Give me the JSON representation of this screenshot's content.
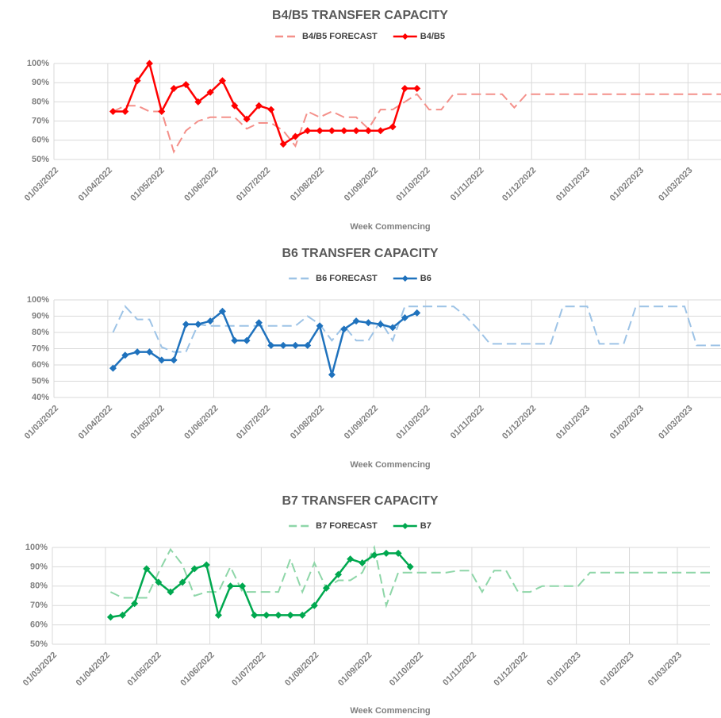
{
  "chart_data": [
    {
      "type": "line",
      "title": "B4/B5 TRANSFER CAPACITY",
      "x_label": "Week Commencing",
      "grid": true,
      "x": [
        "04/04/2022",
        "11/04/2022",
        "18/04/2022",
        "25/04/2022",
        "02/05/2022",
        "09/05/2022",
        "16/05/2022",
        "23/05/2022",
        "30/05/2022",
        "06/06/2022",
        "13/06/2022",
        "20/06/2022",
        "27/06/2022",
        "04/07/2022",
        "11/07/2022",
        "18/07/2022",
        "25/07/2022",
        "01/08/2022",
        "08/08/2022",
        "15/08/2022",
        "22/08/2022",
        "29/08/2022",
        "05/09/2022",
        "12/09/2022",
        "19/09/2022",
        "26/09/2022",
        "03/10/2022",
        "10/10/2022",
        "17/10/2022",
        "24/10/2022",
        "31/10/2022",
        "07/11/2022",
        "14/11/2022",
        "21/11/2022",
        "28/11/2022",
        "05/12/2022",
        "12/12/2022",
        "19/12/2022",
        "26/12/2022",
        "02/01/2023",
        "09/01/2023",
        "16/01/2023",
        "23/01/2023",
        "30/01/2023",
        "06/02/2023",
        "13/02/2023",
        "20/02/2023",
        "27/02/2023",
        "06/03/2023",
        "13/03/2023",
        "20/03/2023"
      ],
      "xlim": [
        "01/03/2022",
        "20/03/2023"
      ],
      "xticks": [
        "01/03/2022",
        "01/04/2022",
        "01/05/2022",
        "01/06/2022",
        "01/07/2022",
        "01/08/2022",
        "01/09/2022",
        "01/10/2022",
        "01/11/2022",
        "01/12/2022",
        "01/01/2023",
        "01/02/2023",
        "01/03/2023"
      ],
      "ylim": [
        50,
        100
      ],
      "yticks": [
        {
          "value": 50,
          "label": "50%"
        },
        {
          "value": 60,
          "label": "60%"
        },
        {
          "value": 70,
          "label": "70%"
        },
        {
          "value": 80,
          "label": "80%"
        },
        {
          "value": 90,
          "label": "90%"
        },
        {
          "value": 100,
          "label": "100%"
        }
      ],
      "series": [
        {
          "name": "B4/B5 FORECAST",
          "color": "#f4908a",
          "dashed": true,
          "values": [
            75,
            78,
            78,
            75,
            75,
            54,
            65,
            70,
            72,
            72,
            72,
            66,
            69,
            69,
            65,
            57,
            75,
            72,
            75,
            72,
            72,
            66,
            76,
            76,
            80,
            84,
            76,
            76,
            84,
            84,
            84,
            84,
            84,
            77,
            84,
            84,
            84,
            84,
            84,
            84,
            84,
            84,
            84,
            84,
            84,
            84,
            84,
            84,
            84,
            84,
            84
          ]
        },
        {
          "name": "B4/B5",
          "color": "#ff0000",
          "marker": "diamond",
          "values": [
            75,
            75,
            91,
            100,
            75,
            87,
            89,
            80,
            85,
            91,
            78,
            71,
            78,
            76,
            58,
            62,
            65,
            65,
            65,
            65,
            65,
            65,
            65,
            67,
            87,
            87,
            null,
            null,
            null,
            null,
            null,
            null,
            null,
            null,
            null,
            null,
            null,
            null,
            null,
            null,
            null,
            null,
            null,
            null,
            null,
            null,
            null,
            null,
            null,
            null,
            null
          ]
        }
      ]
    },
    {
      "type": "line",
      "title": "B6 TRANSFER CAPACITY",
      "x_label": "Week Commencing",
      "grid": true,
      "x": [
        "04/04/2022",
        "11/04/2022",
        "18/04/2022",
        "25/04/2022",
        "02/05/2022",
        "09/05/2022",
        "16/05/2022",
        "23/05/2022",
        "30/05/2022",
        "06/06/2022",
        "13/06/2022",
        "20/06/2022",
        "27/06/2022",
        "04/07/2022",
        "11/07/2022",
        "18/07/2022",
        "25/07/2022",
        "01/08/2022",
        "08/08/2022",
        "15/08/2022",
        "22/08/2022",
        "29/08/2022",
        "05/09/2022",
        "12/09/2022",
        "19/09/2022",
        "26/09/2022",
        "03/10/2022",
        "10/10/2022",
        "17/10/2022",
        "24/10/2022",
        "31/10/2022",
        "07/11/2022",
        "14/11/2022",
        "21/11/2022",
        "28/11/2022",
        "05/12/2022",
        "12/12/2022",
        "19/12/2022",
        "26/12/2022",
        "02/01/2023",
        "09/01/2023",
        "16/01/2023",
        "23/01/2023",
        "30/01/2023",
        "06/02/2023",
        "13/02/2023",
        "20/02/2023",
        "27/02/2023",
        "06/03/2023",
        "13/03/2023",
        "20/03/2023"
      ],
      "xlim": [
        "01/03/2022",
        "20/03/2023"
      ],
      "xticks": [
        "01/03/2022",
        "01/04/2022",
        "01/05/2022",
        "01/06/2022",
        "01/07/2022",
        "01/08/2022",
        "01/09/2022",
        "01/10/2022",
        "01/11/2022",
        "01/12/2022",
        "01/01/2023",
        "01/02/2023",
        "01/03/2023"
      ],
      "ylim": [
        40,
        100
      ],
      "yticks": [
        {
          "value": 40,
          "label": "40%"
        },
        {
          "value": 50,
          "label": "50%"
        },
        {
          "value": 60,
          "label": "60%"
        },
        {
          "value": 70,
          "label": "70%"
        },
        {
          "value": 80,
          "label": "80%"
        },
        {
          "value": 90,
          "label": "90%"
        },
        {
          "value": 100,
          "label": "100%"
        }
      ],
      "series": [
        {
          "name": "B6 FORECAST",
          "color": "#9dc3e6",
          "dashed": true,
          "values": [
            80,
            96,
            88,
            88,
            71,
            68,
            68,
            85,
            84,
            84,
            84,
            84,
            84,
            84,
            84,
            84,
            90,
            85,
            75,
            84,
            75,
            75,
            87,
            75,
            96,
            96,
            96,
            96,
            96,
            90,
            82,
            73,
            73,
            73,
            73,
            73,
            73,
            96,
            96,
            96,
            73,
            73,
            73,
            96,
            96,
            96,
            96,
            96,
            72,
            72,
            72
          ]
        },
        {
          "name": "B6",
          "color": "#1f72bd",
          "marker": "diamond",
          "values": [
            58,
            66,
            68,
            68,
            63,
            63,
            85,
            85,
            87,
            93,
            75,
            75,
            86,
            72,
            72,
            72,
            72,
            84,
            54,
            82,
            87,
            86,
            85,
            83,
            89,
            92,
            null,
            null,
            null,
            null,
            null,
            null,
            null,
            null,
            null,
            null,
            null,
            null,
            null,
            null,
            null,
            null,
            null,
            null,
            null,
            null,
            null,
            null,
            null,
            null,
            null
          ]
        }
      ]
    },
    {
      "type": "line",
      "title": "B7 TRANSFER CAPACITY",
      "x_label": "Week Commencing",
      "grid": true,
      "x": [
        "04/04/2022",
        "11/04/2022",
        "18/04/2022",
        "25/04/2022",
        "02/05/2022",
        "09/05/2022",
        "16/05/2022",
        "23/05/2022",
        "30/05/2022",
        "06/06/2022",
        "13/06/2022",
        "20/06/2022",
        "27/06/2022",
        "04/07/2022",
        "11/07/2022",
        "18/07/2022",
        "25/07/2022",
        "01/08/2022",
        "08/08/2022",
        "15/08/2022",
        "22/08/2022",
        "29/08/2022",
        "05/09/2022",
        "12/09/2022",
        "19/09/2022",
        "26/09/2022",
        "03/10/2022",
        "10/10/2022",
        "17/10/2022",
        "24/10/2022",
        "31/10/2022",
        "07/11/2022",
        "14/11/2022",
        "21/11/2022",
        "28/11/2022",
        "05/12/2022",
        "12/12/2022",
        "19/12/2022",
        "26/12/2022",
        "02/01/2023",
        "09/01/2023",
        "16/01/2023",
        "23/01/2023",
        "30/01/2023",
        "06/02/2023",
        "13/02/2023",
        "20/02/2023",
        "27/02/2023",
        "06/03/2023",
        "13/03/2023",
        "20/03/2023"
      ],
      "xlim": [
        "01/03/2022",
        "20/03/2023"
      ],
      "xticks": [
        "01/03/2022",
        "01/04/2022",
        "01/05/2022",
        "01/06/2022",
        "01/07/2022",
        "01/08/2022",
        "01/09/2022",
        "01/10/2022",
        "01/11/2022",
        "01/12/2022",
        "01/01/2023",
        "01/02/2023",
        "01/03/2023"
      ],
      "ylim": [
        50,
        100
      ],
      "yticks": [
        {
          "value": 50,
          "label": "50%"
        },
        {
          "value": 60,
          "label": "60%"
        },
        {
          "value": 70,
          "label": "70%"
        },
        {
          "value": 80,
          "label": "80%"
        },
        {
          "value": 90,
          "label": "90%"
        },
        {
          "value": 100,
          "label": "100%"
        }
      ],
      "series": [
        {
          "name": "B7 FORECAST",
          "color": "#8ed6a8",
          "dashed": true,
          "values": [
            77,
            74,
            74,
            74,
            87,
            99,
            91,
            75,
            77,
            77,
            90,
            77,
            77,
            77,
            77,
            94,
            77,
            92,
            79,
            83,
            83,
            87,
            100,
            70,
            87,
            87,
            87,
            87,
            87,
            88,
            88,
            77,
            88,
            88,
            77,
            77,
            80,
            80,
            80,
            80,
            87,
            87,
            87,
            87,
            87,
            87,
            87,
            87,
            87,
            87,
            87
          ]
        },
        {
          "name": "B7",
          "color": "#00a84f",
          "marker": "diamond",
          "values": [
            64,
            65,
            71,
            89,
            82,
            77,
            82,
            89,
            91,
            65,
            80,
            80,
            65,
            65,
            65,
            65,
            65,
            70,
            79,
            86,
            94,
            92,
            96,
            97,
            97,
            90,
            null,
            null,
            null,
            null,
            null,
            null,
            null,
            null,
            null,
            null,
            null,
            null,
            null,
            null,
            null,
            null,
            null,
            null,
            null,
            null,
            null,
            null,
            null,
            null,
            null
          ]
        }
      ]
    }
  ]
}
